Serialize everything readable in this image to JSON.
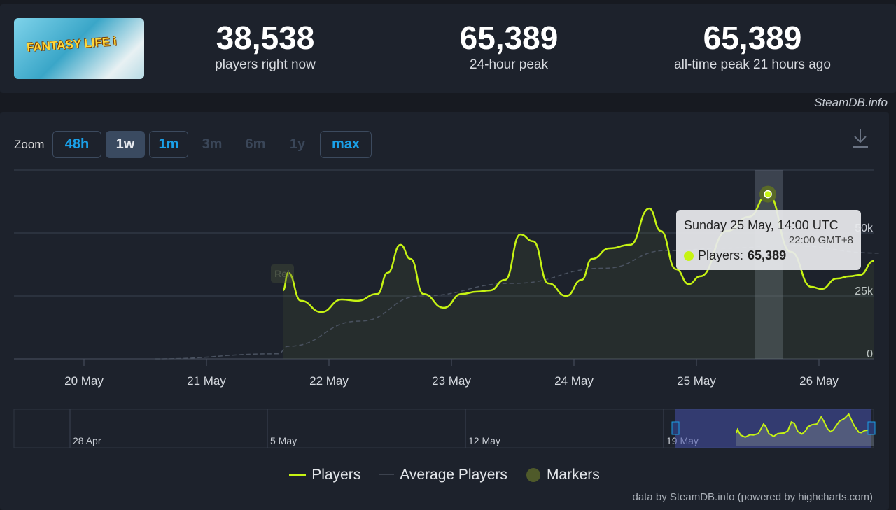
{
  "game": {
    "cover_text": "FANTASY LIFE i"
  },
  "stats": [
    {
      "value": "38,538",
      "label": "players right now"
    },
    {
      "value": "65,389",
      "label": "24-hour peak"
    },
    {
      "value": "65,389",
      "label": "all-time peak 21 hours ago"
    }
  ],
  "credit": "SteamDB.info",
  "zoom": {
    "label": "Zoom",
    "buttons": [
      {
        "label": "48h",
        "state": "enabled"
      },
      {
        "label": "1w",
        "state": "selected"
      },
      {
        "label": "1m",
        "state": "enabled"
      },
      {
        "label": "3m",
        "state": "disabled"
      },
      {
        "label": "6m",
        "state": "disabled"
      },
      {
        "label": "1y",
        "state": "disabled"
      },
      {
        "label": "max",
        "state": "enabled"
      }
    ]
  },
  "download_icon": "download-icon",
  "marker_label": "Rel",
  "tooltip": {
    "date": "Sunday 25 May, 14:00 UTC",
    "local": "22:00 GMT+8",
    "series": "Players:",
    "value": "65,389"
  },
  "navigator": {
    "labels": [
      "28 Apr",
      "5 May",
      "12 May",
      "19 May"
    ]
  },
  "legend": [
    "Players",
    "Average Players",
    "Markers"
  ],
  "footer": "data by SteamDB.info (powered by highcharts.com)",
  "colors": {
    "players": "#c6f313",
    "average": "#5a6270",
    "marker": "#4f5a2a",
    "accent": "#1aa0e8"
  },
  "chart_data": {
    "type": "line",
    "x_tick_labels": [
      "20 May",
      "21 May",
      "22 May",
      "23 May",
      "24 May",
      "25 May",
      "26 May"
    ],
    "y_tick_labels": [
      "0",
      "25k",
      "50k"
    ],
    "ylim": [
      0,
      75000
    ],
    "grid": true,
    "legend_position": "bottom",
    "series": [
      {
        "name": "Players",
        "points": [
          [
            "21 May 15:00",
            27200
          ],
          [
            "21 May 16:00",
            34200
          ],
          [
            "21 May 18:30",
            23100
          ],
          [
            "21 May 22:30",
            18600
          ],
          [
            "22 May 02:30",
            23600
          ],
          [
            "22 May 05:30",
            23100
          ],
          [
            "22 May 09:30",
            25800
          ],
          [
            "22 May 11:30",
            34200
          ],
          [
            "22 May 14:00",
            45300
          ],
          [
            "22 May 16:00",
            39700
          ],
          [
            "22 May 18:30",
            25800
          ],
          [
            "22 May 22:30",
            20300
          ],
          [
            "23 May 02:00",
            25800
          ],
          [
            "23 May 05:00",
            26700
          ],
          [
            "23 May 07:30",
            27200
          ],
          [
            "23 May 10:30",
            31400
          ],
          [
            "23 May 13:30",
            49400
          ],
          [
            "23 May 16:00",
            46700
          ],
          [
            "23 May 19:00",
            30000
          ],
          [
            "23 May 22:30",
            25000
          ],
          [
            "24 May 01:30",
            31400
          ],
          [
            "24 May 03:30",
            39700
          ],
          [
            "24 May 07:00",
            43900
          ],
          [
            "24 May 11:00",
            45300
          ],
          [
            "24 May 14:45",
            59700
          ],
          [
            "24 May 17:00",
            50800
          ],
          [
            "24 May 20:00",
            35600
          ],
          [
            "24 May 22:30",
            29700
          ],
          [
            "25 May 00:45",
            32800
          ],
          [
            "25 May 06:00",
            50800
          ],
          [
            "25 May 10:15",
            56400
          ],
          [
            "25 May 14:00",
            65389
          ],
          [
            "25 May 18:30",
            42500
          ],
          [
            "25 May 22:30",
            28600
          ],
          [
            "26 May 00:30",
            27800
          ],
          [
            "26 May 03:30",
            31900
          ],
          [
            "26 May 06:00",
            32800
          ],
          [
            "26 May 08:00",
            33300
          ],
          [
            "26 May 10:45",
            38900
          ]
        ]
      },
      {
        "name": "Average Players",
        "points": [
          [
            "20 May 14:00",
            0
          ],
          [
            "21 May 14:00",
            2000
          ],
          [
            "21 May 16:00",
            5000
          ],
          [
            "22 May 06:00",
            15000
          ],
          [
            "22 May 18:00",
            25000
          ],
          [
            "23 May 12:00",
            30000
          ],
          [
            "24 May 06:00",
            36000
          ],
          [
            "24 May 18:00",
            43000
          ],
          [
            "25 May 06:00",
            44000
          ],
          [
            "25 May 18:00",
            45000
          ],
          [
            "26 May 12:00",
            42000
          ]
        ]
      }
    ]
  }
}
